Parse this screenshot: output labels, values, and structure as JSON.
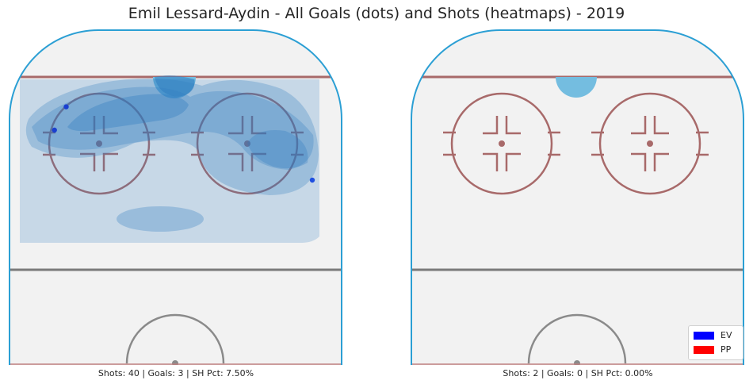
{
  "chart_data": [
    {
      "type": "heatmap",
      "title": "Emil Lessard-Aydin - All Goals (dots) and Shots (heatmaps) - 2019",
      "panel": "left",
      "caption": "Shots: 40 | Goals: 3 | SH Pct: 7.50%",
      "shots": 40,
      "goals_count": 3,
      "shooting_pct": 7.5,
      "goals": [
        {
          "x": -28,
          "y": 77,
          "strength": "EV"
        },
        {
          "x": -31,
          "y": 70,
          "strength": "EV"
        },
        {
          "x": 35,
          "y": 55,
          "strength": "PP"
        }
      ],
      "grid": false
    },
    {
      "type": "heatmap",
      "panel": "right",
      "caption": "Shots: 2 | Goals: 0 | SH Pct: 0.00%",
      "shots": 2,
      "goals_count": 0,
      "shooting_pct": 0.0,
      "goals": [],
      "grid": false
    }
  ],
  "legend": {
    "placement": "bottom-right",
    "entries": [
      {
        "label": "EV",
        "color": "#0000ff"
      },
      {
        "label": "PP",
        "color": "#ff0000"
      }
    ]
  },
  "colors": {
    "boards": "#2b9fd4",
    "red_line": "#a86a6a",
    "gray_line": "#7a7a7a",
    "ice": "#f2f2f2",
    "heat": "#2f7bbf",
    "goal_dot": "#1a3fd0"
  }
}
